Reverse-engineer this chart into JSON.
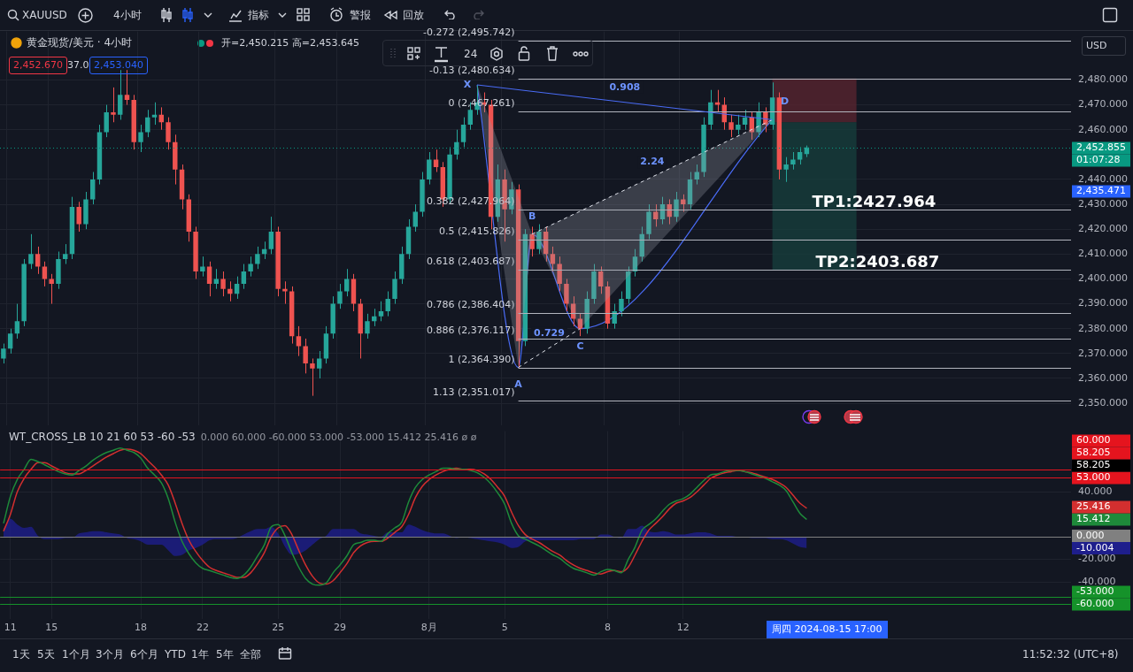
{
  "chart_data": [
    {
      "type": "candlestick",
      "title": "黄金现货/美元 · 4小时",
      "subtitle": "开=2,450.215 高=2,453.645",
      "ohlc": [
        [
          2368,
          2374,
          2366,
          2372
        ],
        [
          2372,
          2380,
          2370,
          2378
        ],
        [
          2378,
          2390,
          2376,
          2383
        ],
        [
          2383,
          2408,
          2381,
          2406
        ],
        [
          2406,
          2418,
          2404,
          2410
        ],
        [
          2410,
          2413,
          2402,
          2405
        ],
        [
          2405,
          2407,
          2397,
          2400
        ],
        [
          2400,
          2402,
          2390,
          2398
        ],
        [
          2398,
          2411,
          2396,
          2408
        ],
        [
          2408,
          2414,
          2406,
          2410
        ],
        [
          2410,
          2433,
          2408,
          2429
        ],
        [
          2429,
          2431,
          2419,
          2422
        ],
        [
          2422,
          2435,
          2420,
          2432
        ],
        [
          2432,
          2443,
          2430,
          2440
        ],
        [
          2440,
          2462,
          2438,
          2459
        ],
        [
          2459,
          2470,
          2457,
          2467
        ],
        [
          2467,
          2477,
          2463,
          2466
        ],
        [
          2466,
          2484,
          2464,
          2474
        ],
        [
          2474,
          2484,
          2470,
          2472
        ],
        [
          2472,
          2474,
          2452,
          2455
        ],
        [
          2455,
          2462,
          2451,
          2459
        ],
        [
          2459,
          2468,
          2457,
          2465
        ],
        [
          2465,
          2471,
          2462,
          2466
        ],
        [
          2466,
          2469,
          2460,
          2463
        ],
        [
          2463,
          2465,
          2452,
          2455
        ],
        [
          2455,
          2458,
          2438,
          2444
        ],
        [
          2444,
          2446,
          2428,
          2432
        ],
        [
          2432,
          2434,
          2415,
          2419
        ],
        [
          2419,
          2421,
          2400,
          2403
        ],
        [
          2403,
          2409,
          2401,
          2405
        ],
        [
          2405,
          2407,
          2393,
          2398
        ],
        [
          2398,
          2404,
          2396,
          2400
        ],
        [
          2400,
          2403,
          2393,
          2396
        ],
        [
          2396,
          2399,
          2391,
          2394
        ],
        [
          2394,
          2401,
          2392,
          2398
        ],
        [
          2398,
          2406,
          2396,
          2403
        ],
        [
          2403,
          2409,
          2401,
          2406
        ],
        [
          2406,
          2413,
          2404,
          2410
        ],
        [
          2410,
          2415,
          2408,
          2412
        ],
        [
          2412,
          2425,
          2410,
          2419
        ],
        [
          2419,
          2421,
          2393,
          2396
        ],
        [
          2396,
          2399,
          2390,
          2395
        ],
        [
          2395,
          2397,
          2374,
          2377
        ],
        [
          2377,
          2381,
          2369,
          2373
        ],
        [
          2373,
          2376,
          2362,
          2366
        ],
        [
          2366,
          2368,
          2353,
          2364
        ],
        [
          2364,
          2371,
          2360,
          2368
        ],
        [
          2368,
          2381,
          2366,
          2378
        ],
        [
          2378,
          2393,
          2376,
          2390
        ],
        [
          2390,
          2398,
          2388,
          2395
        ],
        [
          2395,
          2404,
          2393,
          2400
        ],
        [
          2400,
          2402,
          2387,
          2390
        ],
        [
          2390,
          2392,
          2368,
          2378
        ],
        [
          2378,
          2386,
          2376,
          2383
        ],
        [
          2383,
          2388,
          2381,
          2385
        ],
        [
          2385,
          2391,
          2383,
          2387
        ],
        [
          2387,
          2395,
          2385,
          2392
        ],
        [
          2392,
          2403,
          2390,
          2400
        ],
        [
          2400,
          2413,
          2398,
          2410
        ],
        [
          2410,
          2424,
          2408,
          2421
        ],
        [
          2421,
          2430,
          2419,
          2427
        ],
        [
          2427,
          2443,
          2425,
          2440
        ],
        [
          2440,
          2451,
          2438,
          2448
        ],
        [
          2448,
          2452,
          2443,
          2445
        ],
        [
          2445,
          2447,
          2429,
          2432
        ],
        [
          2432,
          2453,
          2430,
          2450
        ],
        [
          2450,
          2460,
          2448,
          2455
        ],
        [
          2455,
          2465,
          2453,
          2462
        ],
        [
          2462,
          2471,
          2460,
          2468
        ],
        [
          2468,
          2478,
          2466,
          2471
        ],
        [
          2471,
          2475,
          2467,
          2470
        ],
        [
          2470,
          2472,
          2420,
          2425
        ],
        [
          2425,
          2446,
          2423,
          2440
        ],
        [
          2440,
          2444,
          2415,
          2428
        ],
        [
          2428,
          2439,
          2426,
          2436
        ],
        [
          2436,
          2438,
          2364.39,
          2375
        ],
        [
          2375,
          2420,
          2373,
          2418
        ],
        [
          2418,
          2421,
          2409,
          2412
        ],
        [
          2412,
          2422,
          2410,
          2419
        ],
        [
          2419,
          2421,
          2407,
          2410
        ],
        [
          2410,
          2413,
          2403,
          2406
        ],
        [
          2406,
          2409,
          2395,
          2398
        ],
        [
          2398,
          2400,
          2387,
          2390
        ],
        [
          2390,
          2393,
          2381,
          2384
        ],
        [
          2384,
          2386,
          2377,
          2380
        ],
        [
          2380,
          2395,
          2378,
          2392
        ],
        [
          2392,
          2406,
          2390,
          2403
        ],
        [
          2403,
          2405,
          2394,
          2397
        ],
        [
          2397,
          2399,
          2380,
          2382
        ],
        [
          2382,
          2390,
          2380,
          2387
        ],
        [
          2387,
          2395,
          2385,
          2392
        ],
        [
          2392,
          2405,
          2390,
          2403
        ],
        [
          2403,
          2412,
          2401,
          2409
        ],
        [
          2409,
          2421,
          2407,
          2418
        ],
        [
          2418,
          2430,
          2416,
          2427
        ],
        [
          2427,
          2430,
          2421,
          2424
        ],
        [
          2424,
          2433,
          2422,
          2430
        ],
        [
          2430,
          2432,
          2422,
          2425
        ],
        [
          2425,
          2435,
          2423,
          2432
        ],
        [
          2432,
          2434,
          2427,
          2430
        ],
        [
          2430,
          2443,
          2428,
          2440
        ],
        [
          2440,
          2446,
          2438,
          2443
        ],
        [
          2443,
          2465,
          2441,
          2462
        ],
        [
          2462,
          2476,
          2460,
          2471
        ],
        [
          2471,
          2476,
          2467,
          2470
        ],
        [
          2470,
          2473,
          2460,
          2463
        ],
        [
          2463,
          2466,
          2457,
          2460
        ],
        [
          2460,
          2466,
          2458,
          2462
        ],
        [
          2462,
          2468,
          2460,
          2465
        ],
        [
          2465,
          2467,
          2456,
          2459
        ],
        [
          2459,
          2471,
          2457,
          2467
        ],
        [
          2467,
          2469,
          2459,
          2462
        ],
        [
          2462,
          2479,
          2460,
          2473
        ],
        [
          2473,
          2475,
          2440,
          2444
        ],
        [
          2444,
          2449,
          2439,
          2446
        ],
        [
          2446,
          2451,
          2444,
          2448
        ],
        [
          2448,
          2453,
          2446,
          2451
        ],
        [
          2450.215,
          2453.645,
          2449,
          2452.855
        ],
        null,
        null,
        null,
        null,
        null,
        null,
        null,
        null,
        null,
        null,
        null,
        null,
        null,
        null,
        null,
        null,
        null,
        null,
        null,
        null,
        null,
        null,
        null,
        null,
        null,
        null,
        null,
        null,
        null,
        null,
        null,
        null,
        null,
        null,
        null,
        null,
        null,
        null
      ],
      "series": [
        {
          "type": "line",
          "color": "#4a6cf7",
          "values": [
            null,
            null,
            null,
            null,
            null,
            null,
            null,
            null,
            null,
            null,
            null,
            null,
            null,
            null,
            null,
            null,
            null,
            null,
            null,
            null,
            null,
            null,
            null,
            null,
            null,
            null,
            null,
            null,
            null,
            null,
            null,
            null,
            null,
            null,
            null,
            null,
            null,
            null,
            null,
            null,
            null,
            null,
            null,
            null,
            null,
            null,
            null,
            null,
            null,
            null,
            null,
            null,
            null,
            null,
            null,
            null,
            null,
            null,
            null,
            null,
            null,
            null,
            null,
            null,
            null,
            null,
            null,
            null,
            null,
            2478,
            null,
            null,
            null,
            null,
            null,
            2364.39,
            null,
            2418,
            null,
            null,
            null,
            null,
            null,
            null,
            2380,
            null,
            null,
            null,
            null,
            null,
            null,
            null,
            null,
            null,
            null,
            null,
            null,
            null,
            null,
            null,
            null,
            null,
            null,
            null,
            null,
            null,
            null,
            null,
            null,
            null,
            null,
            null,
            2464,
            null,
            null,
            null,
            null,
            null,
            null,
            null,
            null,
            null,
            null,
            null,
            null,
            null,
            null,
            null,
            null,
            null,
            null,
            null,
            null,
            null,
            null,
            null,
            null,
            null,
            null,
            null,
            null,
            null,
            null,
            null,
            null,
            null,
            null,
            null,
            null,
            null,
            null,
            null,
            null,
            null,
            null,
            null
          ],
          "value_labels": [
            null,
            null,
            null,
            null,
            null,
            null,
            null,
            null,
            null,
            null,
            null,
            null,
            null,
            null,
            null,
            null,
            null,
            null,
            null,
            null,
            null,
            null,
            null,
            null,
            null,
            null,
            null,
            null,
            null,
            null,
            null,
            null,
            null,
            null,
            null,
            null,
            null,
            null,
            null,
            null,
            null,
            null,
            null,
            null,
            null,
            null,
            null,
            null,
            null,
            null,
            null,
            null,
            null,
            null,
            null,
            null,
            null,
            null,
            null,
            null,
            null,
            null,
            null,
            null,
            null,
            null,
            null,
            null,
            null,
            "X",
            null,
            null,
            null,
            null,
            null,
            "A",
            null,
            "B",
            null,
            null,
            null,
            null,
            null,
            null,
            "C",
            null,
            null,
            null,
            null,
            null,
            null,
            null,
            null,
            null,
            null,
            null,
            null,
            null,
            null,
            null,
            null,
            null,
            null,
            null,
            null,
            null,
            null,
            null,
            null,
            null,
            null,
            null,
            "D",
            null,
            null,
            null,
            null,
            null,
            null,
            null,
            null,
            null,
            null,
            null,
            null,
            null,
            null,
            null,
            null,
            null,
            null,
            null,
            null,
            null,
            null,
            null,
            null,
            null,
            null,
            null,
            null,
            null,
            null,
            null,
            null,
            null,
            null,
            null,
            null,
            null,
            null,
            null,
            null,
            null,
            null,
            null
          ]
        }
      ],
      "ylim": [
        2341,
        2499.5
      ],
      "yticks": [
        {
          "value": 2350,
          "label": "2,350.000"
        },
        {
          "value": 2360,
          "label": "2,360.000"
        },
        {
          "value": 2370,
          "label": "2,370.000"
        },
        {
          "value": 2380,
          "label": "2,380.000"
        },
        {
          "value": 2390,
          "label": "2,390.000"
        },
        {
          "value": 2400,
          "label": "2,400.000"
        },
        {
          "value": 2410,
          "label": "2,410.000"
        },
        {
          "value": 2420,
          "label": "2,420.000"
        },
        {
          "value": 2430,
          "label": "2,430.000"
        },
        {
          "value": 2440,
          "label": "2,440.000"
        },
        {
          "value": 2460,
          "label": "2,460.000"
        },
        {
          "value": 2470,
          "label": "2,470.000"
        },
        {
          "value": 2480,
          "label": "2,480.000"
        }
      ],
      "grid": true,
      "tick_labels": "y",
      "ref_lines": [
        {
          "axis": "y",
          "value": 2495.742,
          "label": "-0.272 (2,495.742)",
          "color": "#b2b5be"
        },
        {
          "axis": "y",
          "value": 2480.634,
          "label": "-0.13 (2,480.634)",
          "color": "#b2b5be"
        },
        {
          "axis": "y",
          "value": 2467.261,
          "label": "0 (2,467.261)",
          "color": "#b2b5be"
        },
        {
          "axis": "y",
          "value": 2427.964,
          "label": "0.382 (2,427.964)",
          "color": "#b2b5be"
        },
        {
          "axis": "y",
          "value": 2415.826,
          "label": "0.5 (2,415.826)",
          "color": "#b2b5be"
        },
        {
          "axis": "y",
          "value": 2403.687,
          "label": "0.618 (2,403.687)",
          "color": "#b2b5be"
        },
        {
          "axis": "y",
          "value": 2386.404,
          "label": "0.786 (2,386.404)",
          "color": "#b2b5be"
        },
        {
          "axis": "y",
          "value": 2376.117,
          "label": "0.886 (2,376.117)",
          "color": "#b2b5be"
        },
        {
          "axis": "y",
          "value": 2364.39,
          "label": "1 (2,364.390)",
          "color": "#b2b5be"
        },
        {
          "axis": "y",
          "value": 2351.017,
          "label": "1.13 (2,351.017)",
          "color": "#b2b5be"
        },
        {
          "axis": "y",
          "value": 2452.855,
          "label": "2,452.855",
          "color": "#089981",
          "line_style": "dotted"
        }
      ],
      "bands": [
        {
          "axis": "y",
          "from": 2463,
          "to": 2480.634,
          "color": "#5c2630"
        },
        {
          "axis": "y",
          "from": 2403.687,
          "to": 2463,
          "color": "#17403d"
        }
      ],
      "annotations": [
        "XAUUSD",
        "4小时",
        "指标",
        "警报",
        "回放",
        "2,452.670",
        "37.0",
        "2,453.040",
        "24",
        "USD",
        "0.908",
        "2.24",
        "0.729",
        "01:07:28",
        "2,435.471",
        {
          "text": "TP1:2427.964",
          "y": 2427.964
        },
        {
          "text": "TP2:2403.687",
          "y": 2403.687
        }
      ]
    },
    {
      "type": "line",
      "title": "WT_CROSS_LB 10 21 60 53 -60 -53",
      "categories": [
        null,
        "11",
        null,
        null,
        null,
        null,
        null,
        "15",
        null,
        null,
        null,
        null,
        null,
        null,
        null,
        null,
        null,
        null,
        null,
        null,
        "18",
        null,
        null,
        null,
        null,
        null,
        null,
        null,
        null,
        "22",
        null,
        null,
        null,
        null,
        null,
        null,
        null,
        null,
        null,
        null,
        "25",
        null,
        null,
        null,
        null,
        null,
        null,
        null,
        null,
        "29",
        null,
        null,
        null,
        null,
        null,
        null,
        null,
        null,
        null,
        null,
        null,
        null,
        "8月",
        null,
        null,
        null,
        null,
        null,
        null,
        null,
        null,
        null,
        null,
        "5",
        null,
        null,
        null,
        null,
        null,
        null,
        null,
        null,
        null,
        null,
        null,
        null,
        null,
        null,
        "8",
        null,
        null,
        null,
        null,
        null,
        null,
        null,
        null,
        null,
        null,
        "12",
        null,
        null,
        null,
        null,
        null,
        null,
        null,
        null,
        null,
        null,
        null,
        null,
        null,
        null,
        null,
        null,
        null,
        null,
        null,
        null,
        null,
        null,
        null,
        null,
        null,
        null,
        null,
        null,
        null,
        null,
        null,
        null,
        null,
        null,
        null,
        null,
        null,
        null,
        null,
        null,
        null,
        null,
        null,
        null,
        null,
        null,
        null,
        null,
        null,
        null,
        null,
        null,
        null,
        null,
        null,
        null
      ],
      "series": [
        {
          "type": "area",
          "color": "#1e1e8c",
          "values": [
            7,
            16,
            11,
            8,
            9,
            1,
            -2,
            -2,
            -2,
            -1,
            -1,
            3,
            4,
            5,
            5,
            4,
            3,
            2,
            -1,
            -2,
            -4,
            -7,
            -7,
            -7,
            -12,
            -17,
            -16,
            -12,
            -10,
            -7,
            -3,
            -2,
            -2,
            -2,
            -1,
            2,
            5,
            7,
            7,
            9,
            3,
            -9,
            -16,
            -15,
            -12,
            -7,
            -2,
            1,
            7,
            7,
            7,
            7,
            3,
            2,
            1,
            0,
            4,
            4,
            4,
            11,
            9,
            6,
            4,
            3,
            3,
            1,
            -1,
            0,
            -1,
            -2,
            -3,
            -4,
            -5,
            -7,
            -10,
            -9,
            -4,
            -3,
            -3,
            -3,
            -3,
            -3,
            -3,
            -3,
            -2,
            -2,
            -2,
            2,
            2,
            0,
            -1,
            7,
            7,
            10,
            5,
            4,
            5,
            4,
            2,
            2,
            3,
            4,
            4,
            3,
            1,
            1,
            1,
            0,
            0,
            -1,
            -1,
            -1,
            -2,
            -2,
            -3,
            -6,
            -9,
            -10.004,
            null,
            null,
            null,
            null,
            null,
            null,
            null,
            null,
            null,
            null,
            null,
            null,
            null,
            null,
            null,
            null,
            null,
            null,
            null,
            null,
            null,
            null,
            null,
            null,
            null,
            null,
            null,
            null,
            null,
            null,
            null,
            null,
            null,
            null,
            null,
            null,
            null,
            null
          ]
        },
        {
          "type": "line",
          "color": "#1e8a3a",
          "values": [
            12,
            36,
            51,
            60,
            69,
            67,
            64,
            61,
            58,
            56,
            55,
            59,
            63,
            68,
            72,
            75,
            77,
            79,
            77,
            75,
            70,
            61,
            55,
            48,
            34,
            13,
            -4,
            -15,
            -23,
            -28,
            -30,
            -32,
            -34,
            -36,
            -37,
            -34,
            -27,
            -17,
            -7,
            9,
            11,
            1,
            -14,
            -27,
            -37,
            -42,
            -43,
            -41,
            -32,
            -25,
            -17,
            -7,
            -5,
            -3,
            -3,
            -4,
            3,
            8,
            13,
            31,
            44,
            51,
            55,
            58,
            61,
            61,
            60,
            60,
            59,
            57,
            53,
            47,
            39,
            29,
            12,
            1,
            -2,
            -5,
            -8,
            -12,
            -16,
            -19,
            -24,
            -28,
            -30,
            -32,
            -34,
            -31,
            -29,
            -30,
            -32,
            -20,
            -9,
            6,
            11,
            16,
            23,
            29,
            32,
            34,
            38,
            44,
            50,
            55,
            56,
            58,
            59,
            59,
            58,
            56,
            54,
            52,
            49,
            46,
            41,
            31,
            21,
            15.412,
            null,
            null,
            null,
            null,
            null,
            null,
            null,
            null,
            null,
            null,
            null,
            null,
            null,
            null,
            null,
            null,
            null,
            null,
            null,
            null,
            null,
            null,
            null,
            null,
            null,
            null,
            null,
            null,
            null,
            null,
            null,
            null,
            null,
            null,
            null,
            null,
            null,
            null
          ]
        },
        {
          "type": "line",
          "color": "#d32f2f",
          "values": [
            5,
            20,
            40,
            52,
            60,
            66,
            66,
            63,
            60,
            57,
            56,
            56,
            59,
            63,
            67,
            71,
            74,
            77,
            78,
            77,
            74,
            68,
            62,
            55,
            46,
            30,
            12,
            -3,
            -13,
            -21,
            -27,
            -30,
            -32,
            -34,
            -36,
            -36,
            -32,
            -24,
            -14,
            0,
            8,
            10,
            2,
            -12,
            -25,
            -35,
            -41,
            -42,
            -39,
            -32,
            -24,
            -14,
            -8,
            -5,
            -4,
            -4,
            -1,
            4,
            9,
            20,
            35,
            45,
            51,
            55,
            58,
            60,
            61,
            60,
            60,
            59,
            56,
            51,
            44,
            36,
            22,
            10,
            2,
            -2,
            -5,
            -9,
            -13,
            -16,
            -21,
            -25,
            -28,
            -30,
            -32,
            -33,
            -31,
            -30,
            -31,
            -27,
            -16,
            -4,
            6,
            12,
            18,
            25,
            30,
            32,
            35,
            40,
            46,
            52,
            55,
            57,
            58,
            59,
            58,
            57,
            55,
            53,
            51,
            48,
            44,
            37,
            30,
            25.416,
            null,
            null,
            null,
            null,
            null,
            null,
            null,
            null,
            null,
            null,
            null,
            null,
            null,
            null,
            null,
            null,
            null,
            null,
            null,
            null,
            null,
            null,
            null,
            null,
            null,
            null,
            null,
            null,
            null,
            null,
            null,
            null,
            null,
            null,
            null,
            null,
            null,
            null
          ]
        }
      ],
      "ylim": [
        -73,
        94
      ],
      "yticks": [
        {
          "value": 40,
          "label": "40.000"
        },
        {
          "value": -20,
          "label": "-20.000"
        },
        {
          "value": -40,
          "label": "-40.000"
        }
      ],
      "grid": true,
      "ref_lines": [
        {
          "axis": "y",
          "value": 60,
          "label": "60.000",
          "color": "#e5141e"
        },
        {
          "axis": "y",
          "value": 53,
          "label": "53.000",
          "color": "#e5141e"
        },
        {
          "axis": "y",
          "value": 0,
          "label": "0.000",
          "color": "#808080"
        },
        {
          "axis": "y",
          "value": -53,
          "label": "-53.000",
          "color": "#15922a"
        },
        {
          "axis": "y",
          "value": -60,
          "label": "-60.000",
          "color": "#15922a"
        }
      ],
      "annotations": [
        "1天",
        "5天",
        "1个月",
        "3个月",
        "6个月",
        "YTD",
        "1年",
        "5年",
        "全部",
        "11:52:32 (UTC+8)",
        "周四 2024-08-15 17:00",
        "0.000 60.000 -60.000 53.000 -53.000 15.412 25.416 ø ø",
        "58.205",
        "58.205",
        "-10.004",
        "15.412",
        "25.416"
      ]
    }
  ]
}
